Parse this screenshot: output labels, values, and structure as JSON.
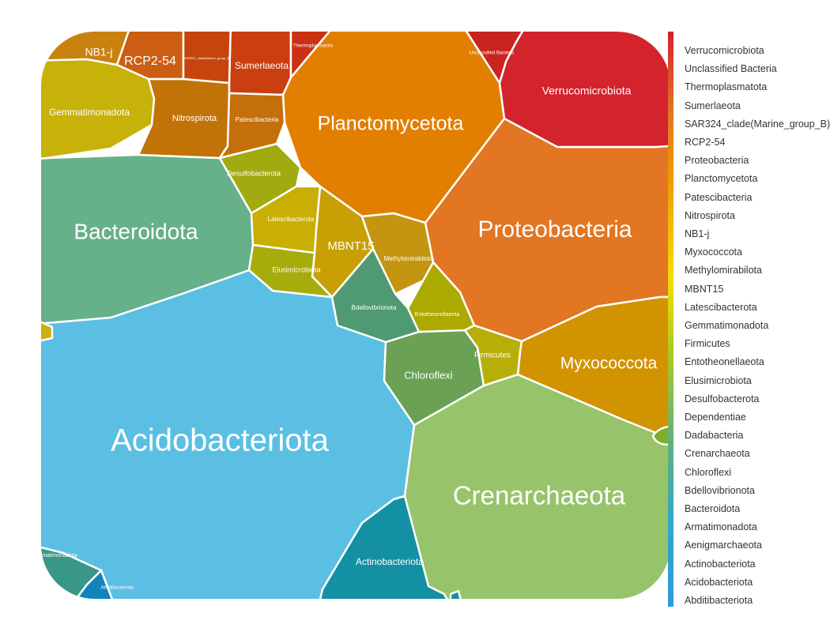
{
  "chart_data": {
    "type": "voronoi_treemap",
    "cells": [
      {
        "name": "Acidobacteriota",
        "color": "#5BBFE3"
      },
      {
        "name": "Crenarchaeota",
        "color": "#97C46A"
      },
      {
        "name": "Proteobacteria",
        "color": "#E27622"
      },
      {
        "name": "Planctomycetota",
        "color": "#E27F00"
      },
      {
        "name": "Bacteroidota",
        "color": "#66B08A"
      },
      {
        "name": "Myxococcota",
        "color": "#D29300"
      },
      {
        "name": "Verrucomicrobiota",
        "color": "#D3232D"
      },
      {
        "name": "Gemmatimonadota",
        "color": "#C7B20A"
      },
      {
        "name": "Actinobacteriota",
        "color": "#1390A4"
      },
      {
        "name": "Chloroflexi",
        "color": "#6AA155"
      },
      {
        "name": "Armatimonadota",
        "color": "#3A9686"
      },
      {
        "name": "Nitrospirota",
        "color": "#C27308"
      },
      {
        "name": "RCP2-54",
        "color": "#CB5E12"
      },
      {
        "name": "Sumerlaeota",
        "color": "#CA3E0F"
      },
      {
        "name": "MBNT15",
        "color": "#C8A006"
      },
      {
        "name": "Methylomirabilota",
        "color": "#C39510"
      },
      {
        "name": "Desulfobacterota",
        "color": "#A1AB10"
      },
      {
        "name": "Elusimicrobiota",
        "color": "#A6AC0B"
      },
      {
        "name": "Latescibacterota",
        "color": "#C9AE04"
      },
      {
        "name": "Patescibacteria",
        "color": "#C46F0A"
      },
      {
        "name": "Bdellovibrionota",
        "color": "#4F9A72"
      },
      {
        "name": "Entotheonellaeota",
        "color": "#ACAA00"
      },
      {
        "name": "Firmicutes",
        "color": "#B7AE0A"
      },
      {
        "name": "Unclassified Bacteria",
        "color": "#C8251F"
      },
      {
        "name": "Thermoplasmatota",
        "color": "#C93112"
      },
      {
        "name": "NB1-j",
        "color": "#C9820F"
      },
      {
        "name": "SAR324_clade(Marine_group_B)",
        "color": "#C6450E"
      },
      {
        "name": "Abditibacteriota",
        "color": "#1284BD"
      },
      {
        "name": "Dadabacteria",
        "color": "#7FAE2A"
      },
      {
        "name": "Dependentiae",
        "color": "#C8B010"
      },
      {
        "name": "Aenigmarchaeota",
        "color": "#1A8FA0"
      }
    ],
    "legend": {
      "placement": "right",
      "items": [
        "Verrucomicrobiota",
        "Unclassified Bacteria",
        "Thermoplasmatota",
        "Sumerlaeota",
        "SAR324_clade(Marine_group_B)",
        "RCP2-54",
        "Proteobacteria",
        "Planctomycetota",
        "Patescibacteria",
        "Nitrospirota",
        "NB1-j",
        "Myxococcota",
        "Methylomirabilota",
        "MBNT15",
        "Latescibacterota",
        "Gemmatimonadota",
        "Firmicutes",
        "Entotheonellaeota",
        "Elusimicrobiota",
        "Desulfobacterota",
        "Dependentiae",
        "Dadabacteria",
        "Crenarchaeota",
        "Chloroflexi",
        "Bdellovibrionota",
        "Bacteroidota",
        "Armatimonadota",
        "Aenigmarchaeota",
        "Actinobacteriota",
        "Acidobacteriota",
        "Abditibacteriota"
      ],
      "gradient": [
        "#D3232D",
        "#E27622",
        "#F0A500",
        "#F5DC00",
        "#A6C52A",
        "#61B07A",
        "#2FA6CE",
        "#2D9BE0"
      ]
    }
  }
}
